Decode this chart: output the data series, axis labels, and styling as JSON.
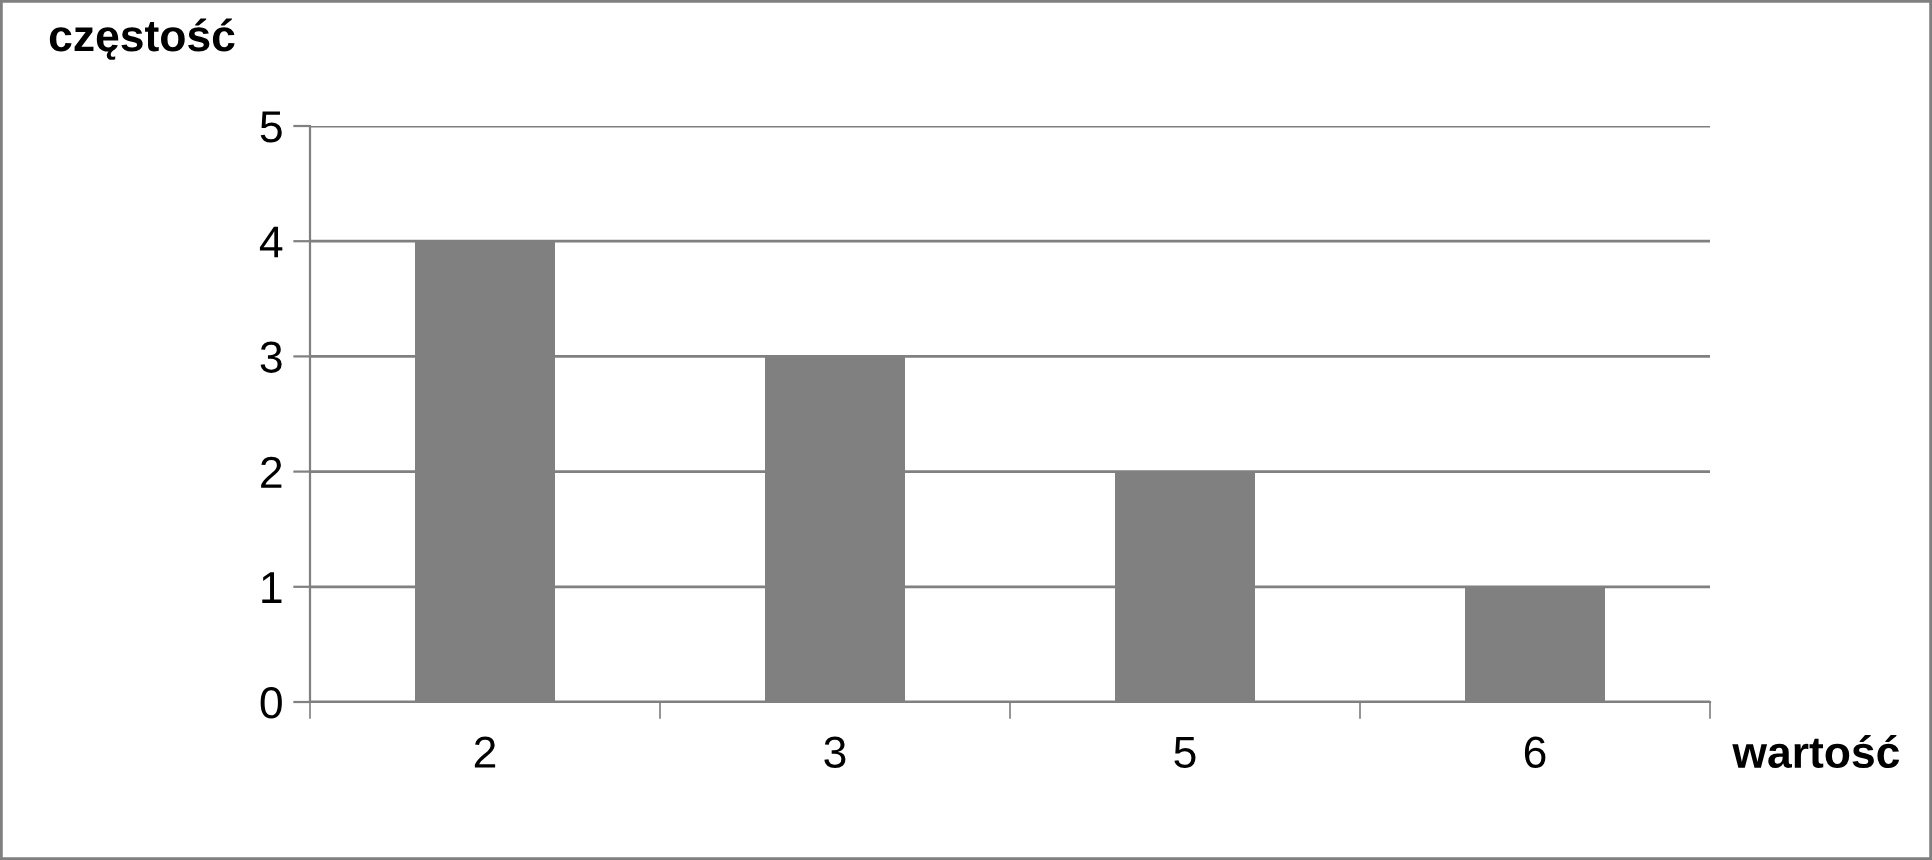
{
  "chart_data": {
    "type": "bar",
    "xlabel": "wartość",
    "ylabel": "częstość",
    "categories": [
      "2",
      "3",
      "5",
      "6"
    ],
    "values": [
      4,
      3,
      2,
      1
    ],
    "color": "#808080",
    "ylim": [
      0,
      5
    ],
    "yticks": [
      0,
      1,
      2,
      3,
      4,
      5
    ],
    "grid": "y"
  }
}
